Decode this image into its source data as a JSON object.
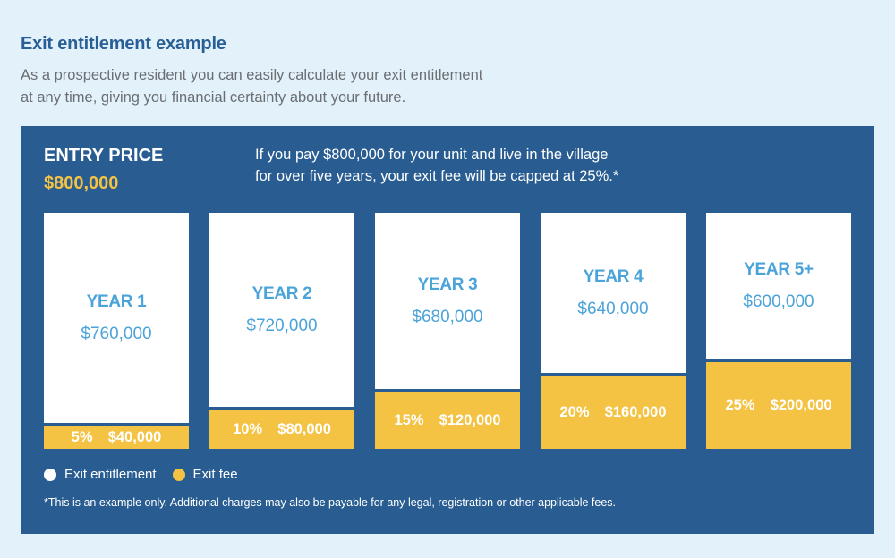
{
  "header": {
    "title": "Exit entitlement example",
    "intro_line1": "As a prospective resident you can easily calculate your exit entitlement",
    "intro_line2": "at any time, giving you financial certainty about your future."
  },
  "panel": {
    "entry_label": "ENTRY PRICE",
    "entry_value": "$800,000",
    "note_line1": "If you pay $800,000 for your unit and live in the village",
    "note_line2": "for over five years, your exit fee will be capped at 25%.*",
    "footnote": "*This is an example only. Additional charges may also be payable for any legal, registration or other applicable fees."
  },
  "colors": {
    "panel_bg": "#295d92",
    "entitlement": "#ffffff",
    "fee": "#f4c344",
    "year_text": "#4aa3d9",
    "page_bg": "#e2f1fa"
  },
  "legend": [
    {
      "label": "Exit entitlement",
      "color": "#ffffff"
    },
    {
      "label": "Exit fee",
      "color": "#f4c344"
    }
  ],
  "bars": [
    {
      "year": "YEAR 1",
      "entitlement": "$760,000",
      "fee_pct": "5%",
      "fee_amount": "$40,000"
    },
    {
      "year": "YEAR 2",
      "entitlement": "$720,000",
      "fee_pct": "10%",
      "fee_amount": "$80,000"
    },
    {
      "year": "YEAR 3",
      "entitlement": "$680,000",
      "fee_pct": "15%",
      "fee_amount": "$120,000"
    },
    {
      "year": "YEAR 4",
      "entitlement": "$640,000",
      "fee_pct": "20%",
      "fee_amount": "$160,000"
    },
    {
      "year": "YEAR 5+",
      "entitlement": "$600,000",
      "fee_pct": "25%",
      "fee_amount": "$200,000"
    }
  ],
  "chart_data": {
    "type": "bar",
    "stacked": true,
    "title": "Exit entitlement example",
    "categories": [
      "YEAR 1",
      "YEAR 2",
      "YEAR 3",
      "YEAR 4",
      "YEAR 5+"
    ],
    "series": [
      {
        "name": "Exit entitlement",
        "color": "#ffffff",
        "values": [
          760000,
          720000,
          680000,
          640000,
          600000
        ]
      },
      {
        "name": "Exit fee",
        "color": "#f4c344",
        "values": [
          40000,
          80000,
          120000,
          160000,
          200000
        ],
        "percent": [
          5,
          10,
          15,
          20,
          25
        ]
      }
    ],
    "total": 800000,
    "xlabel": "",
    "ylabel": "",
    "grid": false,
    "legend_position": "bottom-left"
  }
}
